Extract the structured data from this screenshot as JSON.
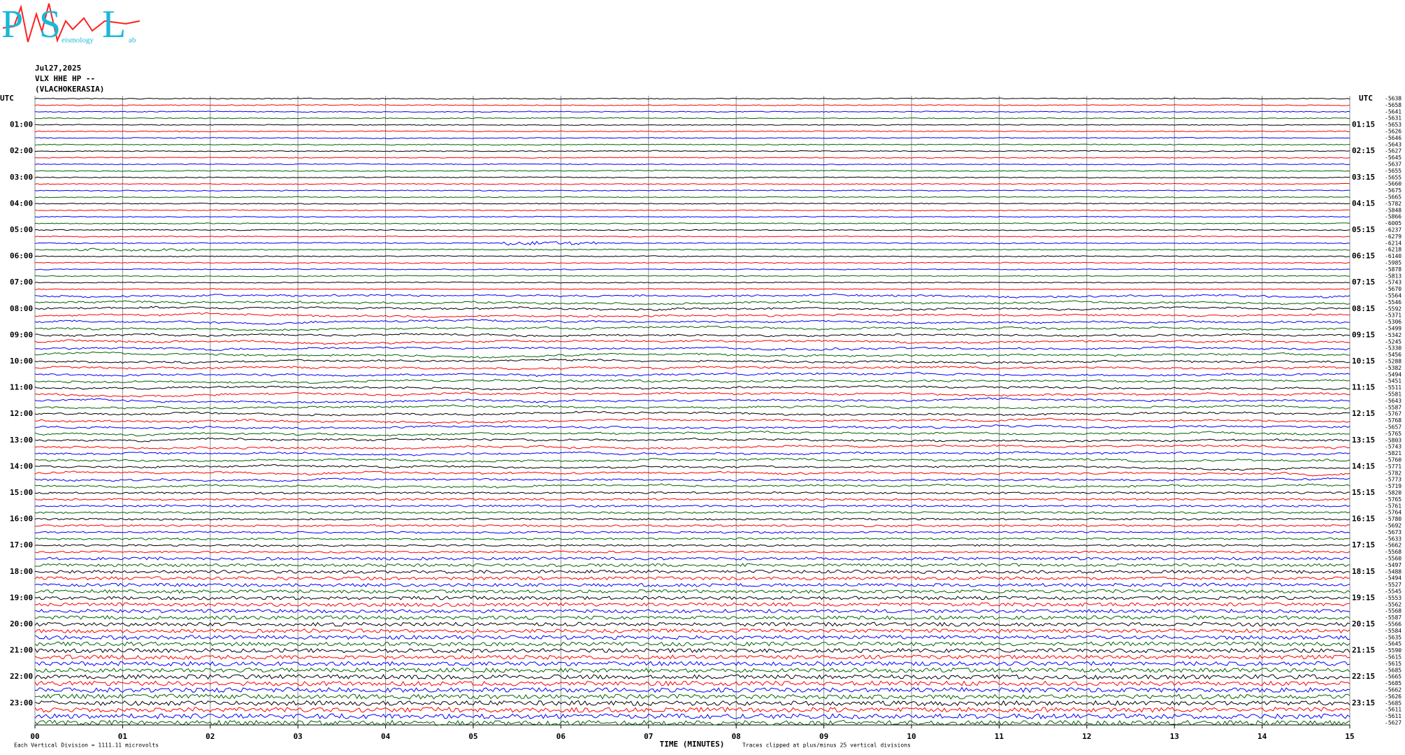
{
  "chart_data": {
    "type": "helicorder",
    "logo": {
      "letters": [
        "P",
        "S",
        "L"
      ],
      "small": [
        "eismology",
        "ab"
      ]
    },
    "date": "Jul27,2025",
    "station": "VLX HHE HP --",
    "location": "(VLACHOKERASIA)",
    "left_axis_label": "UTC",
    "right_axis_label": "UTC",
    "left_times": [
      "01:00",
      "02:00",
      "03:00",
      "04:00",
      "05:00",
      "06:00",
      "07:00",
      "08:00",
      "09:00",
      "10:00",
      "11:00",
      "12:00",
      "13:00",
      "14:00",
      "15:00",
      "16:00",
      "17:00",
      "18:00",
      "19:00",
      "20:00",
      "21:00",
      "22:00",
      "23:00"
    ],
    "right_times": [
      "01:15",
      "02:15",
      "03:15",
      "04:15",
      "05:15",
      "06:15",
      "07:15",
      "08:15",
      "09:15",
      "10:15",
      "11:15",
      "12:15",
      "13:15",
      "14:15",
      "15:15",
      "16:15",
      "17:15",
      "18:15",
      "19:15",
      "20:15",
      "21:15",
      "22:15",
      "23:15"
    ],
    "colors": [
      "#000000",
      "#ff0000",
      "#0000ff",
      "#006400"
    ],
    "trace_offsets": [
      -5638,
      -5658,
      -5641,
      -5631,
      -5653,
      -5626,
      -5646,
      -5643,
      -5627,
      -5645,
      -5637,
      -5655,
      -5655,
      -5660,
      -5675,
      -5665,
      -5782,
      -5848,
      -5866,
      -6005,
      -6237,
      -6279,
      -6214,
      -6218,
      -6140,
      -5985,
      -5878,
      -5813,
      -5743,
      -5670,
      -5564,
      -5546,
      -5592,
      -5371,
      -5306,
      -5499,
      -5342,
      -5245,
      -5330,
      -5456,
      -5288,
      -5382,
      -5494,
      -5451,
      -5511,
      -5581,
      -5643,
      -5587,
      -5767,
      -5768,
      -5657,
      -5765,
      -5803,
      -5743,
      -5821,
      -5760,
      -5771,
      -5782,
      -5773,
      -5719,
      -5820,
      -5765,
      -5761,
      -5764,
      -5780,
      -5692,
      -5673,
      -5633,
      -5662,
      -5568,
      -5560,
      -5497,
      -5488,
      -5494,
      -5527,
      -5545,
      -5553,
      -5562,
      -5568,
      -5587,
      -5566,
      -5584,
      -5635,
      -5645,
      -5590,
      -5615,
      -5615,
      -5685,
      -5665,
      -5685,
      -5662,
      -5626,
      -5685,
      -5611,
      -5611,
      -5627
    ],
    "xlim": [
      0,
      15
    ],
    "xticks": [
      {
        "value": 0,
        "label": "00"
      },
      {
        "value": 1,
        "label": "01"
      },
      {
        "value": 2,
        "label": "02"
      },
      {
        "value": 3,
        "label": "03"
      },
      {
        "value": 4,
        "label": "04"
      },
      {
        "value": 5,
        "label": "05"
      },
      {
        "value": 6,
        "label": "06"
      },
      {
        "value": 7,
        "label": "07"
      },
      {
        "value": 8,
        "label": "08"
      },
      {
        "value": 9,
        "label": "09"
      },
      10,
      11,
      12,
      13,
      14,
      15
    ],
    "xlabel": "TIME (MINUTES)",
    "footer_left": "Each Vertical Division = 1111.11 microvolts",
    "footer_right": "Traces clipped at plus/minus 25 vertical divisions",
    "grid": true
  }
}
